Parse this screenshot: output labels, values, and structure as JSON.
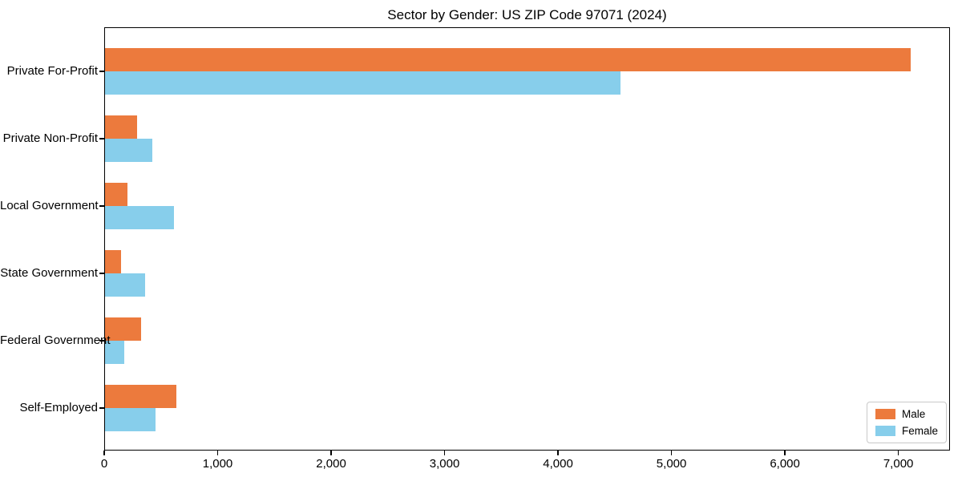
{
  "chart_data": {
    "type": "bar",
    "orientation": "horizontal",
    "title": "Sector by Gender: US ZIP Code 97071 (2024)",
    "categories": [
      "Private For-Profit",
      "Private Non-Profit",
      "Local Government",
      "State Government",
      "Federal Government",
      "Self-Employed"
    ],
    "series": [
      {
        "name": "Male",
        "color": "#ec7a3d",
        "values": [
          7100,
          285,
          195,
          140,
          315,
          630
        ]
      },
      {
        "name": "Female",
        "color": "#87ceeb",
        "values": [
          4540,
          415,
          610,
          355,
          170,
          445
        ]
      }
    ],
    "xlabel": "",
    "ylabel": "",
    "xlim": [
      0,
      7455
    ],
    "xticks": {
      "values": [
        0,
        1000,
        2000,
        3000,
        4000,
        5000,
        6000,
        7000
      ],
      "labels": [
        "0",
        "1,000",
        "2,000",
        "3,000",
        "4,000",
        "5,000",
        "6,000",
        "7,000"
      ]
    },
    "grid": false,
    "legend_position": "lower right",
    "colors": {
      "spine": "#000000",
      "background": "#ffffff",
      "text": "#000000"
    }
  }
}
